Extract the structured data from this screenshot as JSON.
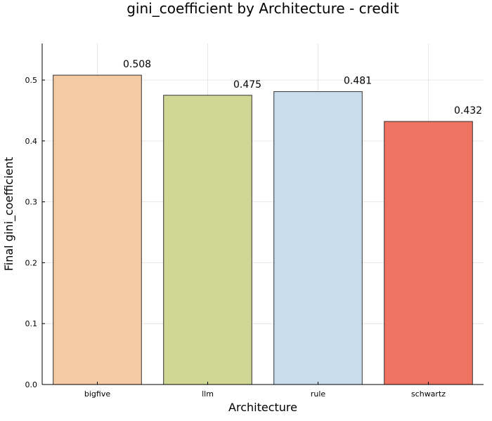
{
  "chart_data": {
    "type": "bar",
    "title": "gini_coefficient by Architecture - credit",
    "xlabel": "Architecture",
    "ylabel": "Final gini_coefficient",
    "categories": [
      "bigfive",
      "llm",
      "rule",
      "schwartz"
    ],
    "values": [
      0.508,
      0.475,
      0.481,
      0.432
    ],
    "value_labels": [
      "0.508",
      "0.475",
      "0.481",
      "0.432"
    ],
    "colors": [
      "#f4c9a3",
      "#d0d694",
      "#c9dceb",
      "#ef7360"
    ],
    "ylim": [
      0,
      0.56
    ],
    "yticks": [
      0.0,
      0.1,
      0.2,
      0.3,
      0.4,
      0.5
    ],
    "ytick_labels": [
      "0.0",
      "0.1",
      "0.2",
      "0.3",
      "0.4",
      "0.5"
    ],
    "grid": true,
    "legend": "none"
  }
}
